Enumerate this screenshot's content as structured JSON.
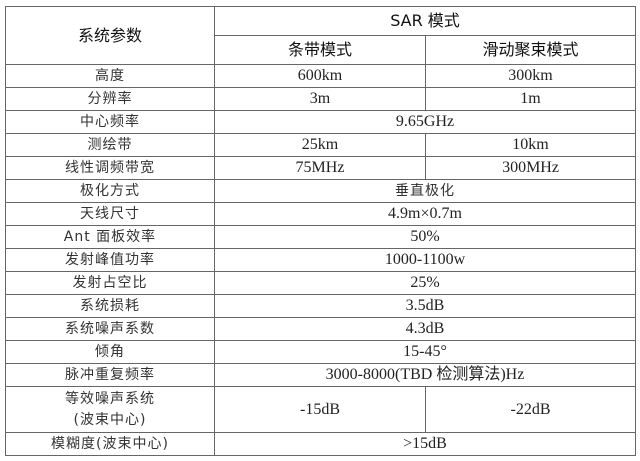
{
  "header": {
    "param_label": "系统参数",
    "sar_mode": "SAR 模式",
    "strip_mode": "条带模式",
    "spotlight_mode": "滑动聚束模式"
  },
  "rows": [
    {
      "label": "高度",
      "strip": "600km",
      "spotlight": "300km"
    },
    {
      "label": "分辨率",
      "strip": "3m",
      "spotlight": "1m"
    },
    {
      "label": "中心频率",
      "value": "9.65GHz"
    },
    {
      "label": "测绘带",
      "strip": "25km",
      "spotlight": "10km"
    },
    {
      "label": "线性调频带宽",
      "strip": "75MHz",
      "spotlight": "300MHz"
    },
    {
      "label": "极化方式",
      "value": "垂直极化"
    },
    {
      "label": "天线尺寸",
      "value": "4.9m×0.7m"
    },
    {
      "label": "Ant 面板效率",
      "value": "50%"
    },
    {
      "label": "发射峰值功率",
      "value": "1000-1100w"
    },
    {
      "label": "发射占空比",
      "value": "25%"
    },
    {
      "label": "系统损耗",
      "value": "3.5dB"
    },
    {
      "label": "系统噪声系数",
      "value": "4.3dB"
    },
    {
      "label": "倾角",
      "value": "15-45°"
    },
    {
      "label": "脉冲重复频率",
      "value": "3000-8000(TBD 检测算法)Hz"
    },
    {
      "label": "等效噪声系统",
      "label2": "(波束中心)",
      "strip": "-15dB",
      "spotlight": "-22dB"
    },
    {
      "label": "模糊度(波束中心)",
      "value": ">15dB"
    }
  ]
}
